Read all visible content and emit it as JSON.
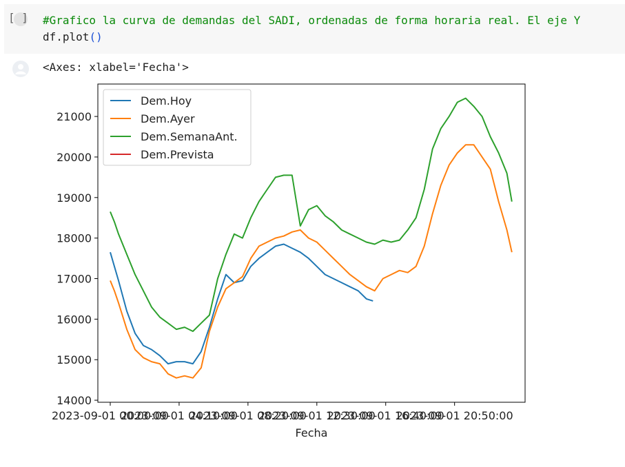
{
  "cell": {
    "run_bracket": "[ ]",
    "code_comment": "#Grafico la curva de demandas del SADI, ordenadas de forma horaria real. El eje Y",
    "code_ident": "df.plot",
    "code_parens": "()",
    "output_text": "<Axes: xlabel='Fecha'>"
  },
  "chart_data": {
    "type": "line",
    "xlabel": "Fecha",
    "ylabel": "",
    "ylim": [
      13950,
      21800
    ],
    "yticks": [
      14000,
      15000,
      16000,
      17000,
      18000,
      19000,
      20000,
      21000
    ],
    "ytick_labels": [
      "14000",
      "15000",
      "16000",
      "17000",
      "18000",
      "19000",
      "20000",
      "21000"
    ],
    "xtick_labels": [
      "2023-09-01 00:00:00",
      "2023-09-01 04:10:00",
      "2023-09-01 08:20:00",
      "2023-09-01 12:30:00",
      "2023-09-01 16:40:00",
      "2023-09-01 20:50:00"
    ],
    "xtick_hours": [
      0,
      4.1667,
      8.3333,
      12.5,
      16.6667,
      20.8333
    ],
    "xlim_hours": [
      -0.75,
      25.1
    ],
    "legend_position": "upper left",
    "series": [
      {
        "name": "Dem.Hoy",
        "color": "#1f77b4",
        "x_hours": [
          0,
          0.25,
          0.5,
          1,
          1.5,
          2,
          2.5,
          3,
          3.5,
          4,
          4.5,
          5,
          5.5,
          6,
          6.5,
          7,
          7.5,
          8,
          8.5,
          9,
          9.5,
          10,
          10.5,
          11,
          11.5,
          12,
          12.5,
          13,
          13.5,
          14,
          14.5,
          15,
          15.5,
          15.9
        ],
        "values": [
          17650,
          17300,
          16950,
          16200,
          15650,
          15350,
          15250,
          15100,
          14900,
          14950,
          14950,
          14900,
          15200,
          15800,
          16500,
          17100,
          16900,
          16950,
          17300,
          17500,
          17650,
          17800,
          17850,
          17750,
          17650,
          17500,
          17300,
          17100,
          17000,
          16900,
          16800,
          16700,
          16500,
          16450
        ]
      },
      {
        "name": "Dem.Ayer",
        "color": "#ff7f0e",
        "x_hours": [
          0,
          0.25,
          0.5,
          1,
          1.5,
          2,
          2.5,
          3,
          3.5,
          4,
          4.5,
          5,
          5.5,
          6,
          6.5,
          7,
          7.5,
          8,
          8.5,
          9,
          9.5,
          10,
          10.5,
          11,
          11.5,
          12,
          12.5,
          13,
          13.5,
          14,
          14.5,
          15,
          15.5,
          16,
          16.5,
          17,
          17.5,
          18,
          18.5,
          19,
          19.5,
          20,
          20.5,
          21,
          21.5,
          22,
          22.5,
          23,
          23.5,
          24,
          24.3
        ],
        "values": [
          16950,
          16700,
          16400,
          15750,
          15250,
          15050,
          14950,
          14900,
          14650,
          14550,
          14600,
          14550,
          14800,
          15700,
          16300,
          16750,
          16900,
          17050,
          17500,
          17800,
          17900,
          18000,
          18050,
          18150,
          18200,
          18000,
          17900,
          17700,
          17500,
          17300,
          17100,
          16950,
          16800,
          16700,
          17000,
          17100,
          17200,
          17150,
          17300,
          17800,
          18600,
          19300,
          19800,
          20100,
          20300,
          20300,
          20000,
          19700,
          18900,
          18200,
          17650
        ]
      },
      {
        "name": "Dem.SemanaAnt.",
        "color": "#2ca02c",
        "x_hours": [
          0,
          0.25,
          0.5,
          1,
          1.5,
          2,
          2.5,
          3,
          3.5,
          4,
          4.5,
          5,
          5.5,
          6,
          6.5,
          7,
          7.5,
          8,
          8.5,
          9,
          9.5,
          10,
          10.5,
          11,
          11.5,
          12,
          12.5,
          13,
          13.5,
          14,
          14.5,
          15,
          15.5,
          16,
          16.5,
          17,
          17.5,
          18,
          18.5,
          19,
          19.5,
          20,
          20.5,
          21,
          21.5,
          22,
          22.5,
          23,
          23.5,
          24,
          24.3
        ],
        "values": [
          18650,
          18400,
          18100,
          17600,
          17100,
          16700,
          16300,
          16050,
          15900,
          15750,
          15800,
          15700,
          15900,
          16100,
          17000,
          17600,
          18100,
          18000,
          18500,
          18900,
          19200,
          19500,
          19550,
          19550,
          18300,
          18700,
          18800,
          18550,
          18400,
          18200,
          18100,
          18000,
          17900,
          17850,
          17950,
          17900,
          17950,
          18200,
          18500,
          19200,
          20200,
          20700,
          21000,
          21350,
          21450,
          21250,
          21000,
          20500,
          20100,
          19600,
          18900
        ]
      },
      {
        "name": "Dem.Prevista",
        "color": "#d62728",
        "x_hours": [],
        "values": []
      }
    ]
  }
}
